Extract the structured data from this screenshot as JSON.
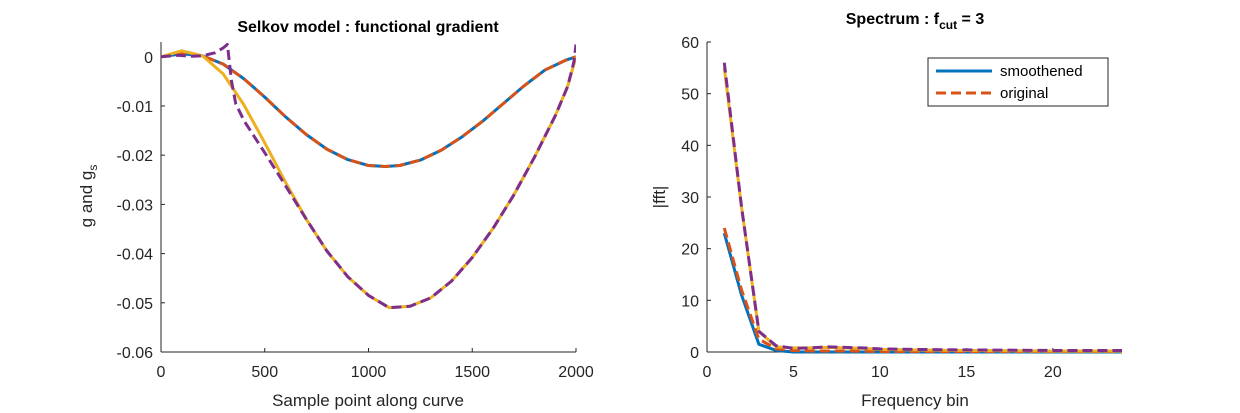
{
  "chart_data": [
    {
      "type": "line",
      "title": "Selkov model : functional gradient",
      "xlabel": "Sample point along curve",
      "ylabel": {
        "base": "g and g",
        "subscript": "s"
      },
      "xlim": [
        0,
        2000
      ],
      "ylim": [
        -0.06,
        0.003
      ],
      "xticks": [
        0,
        500,
        1000,
        1500,
        2000
      ],
      "xtick_labels": [
        "0",
        "500",
        "1000",
        "1500",
        "2000"
      ],
      "yticks": [
        0,
        -0.01,
        -0.02,
        -0.03,
        -0.04,
        -0.05,
        -0.06
      ],
      "ytick_labels": [
        "0",
        "-0.01",
        "-0.02",
        "-0.03",
        "-0.04",
        "-0.05",
        "-0.06"
      ],
      "grid": false,
      "series": [
        {
          "color": "#0072BD",
          "dash": "solid",
          "points": [
            [
              0,
              0
            ],
            [
              100,
              0.0006
            ],
            [
              200,
              0.0002
            ],
            [
              300,
              -0.0015
            ],
            [
              400,
              -0.0045
            ],
            [
              500,
              -0.0082
            ],
            [
              600,
              -0.0122
            ],
            [
              700,
              -0.0158
            ],
            [
              800,
              -0.0188
            ],
            [
              900,
              -0.0209
            ],
            [
              1000,
              -0.0221
            ],
            [
              1080,
              -0.0223
            ],
            [
              1150,
              -0.0221
            ],
            [
              1250,
              -0.021
            ],
            [
              1350,
              -0.019
            ],
            [
              1450,
              -0.0163
            ],
            [
              1550,
              -0.0131
            ],
            [
              1650,
              -0.0095
            ],
            [
              1750,
              -0.0059
            ],
            [
              1850,
              -0.0027
            ],
            [
              1950,
              -0.0007
            ],
            [
              2000,
              0
            ]
          ]
        },
        {
          "color": "#D95319",
          "dash": "dashed",
          "points": [
            [
              0,
              0
            ],
            [
              100,
              0.0006
            ],
            [
              200,
              0.0002
            ],
            [
              300,
              -0.0015
            ],
            [
              400,
              -0.0045
            ],
            [
              500,
              -0.0082
            ],
            [
              600,
              -0.0122
            ],
            [
              700,
              -0.0158
            ],
            [
              800,
              -0.0188
            ],
            [
              900,
              -0.0209
            ],
            [
              1000,
              -0.0221
            ],
            [
              1080,
              -0.0223
            ],
            [
              1150,
              -0.0221
            ],
            [
              1250,
              -0.021
            ],
            [
              1350,
              -0.019
            ],
            [
              1450,
              -0.0163
            ],
            [
              1550,
              -0.0131
            ],
            [
              1650,
              -0.0095
            ],
            [
              1750,
              -0.0059
            ],
            [
              1850,
              -0.0027
            ],
            [
              1950,
              -0.0007
            ],
            [
              2000,
              0
            ]
          ]
        },
        {
          "color": "#EDB120",
          "dash": "solid",
          "points": [
            [
              0,
              0
            ],
            [
              100,
              0.0012
            ],
            [
              200,
              0.0002
            ],
            [
              300,
              -0.0035
            ],
            [
              400,
              -0.0098
            ],
            [
              500,
              -0.0175
            ],
            [
              600,
              -0.0255
            ],
            [
              700,
              -0.033
            ],
            [
              800,
              -0.0395
            ],
            [
              900,
              -0.0447
            ],
            [
              1000,
              -0.0485
            ],
            [
              1100,
              -0.051
            ],
            [
              1200,
              -0.0507
            ],
            [
              1300,
              -0.049
            ],
            [
              1400,
              -0.0456
            ],
            [
              1500,
              -0.0408
            ],
            [
              1600,
              -0.0349
            ],
            [
              1700,
              -0.0281
            ],
            [
              1800,
              -0.0204
            ],
            [
              1900,
              -0.012
            ],
            [
              1960,
              -0.006
            ],
            [
              2000,
              0
            ]
          ]
        },
        {
          "color": "#7E2F8E",
          "dash": "dashed",
          "points": [
            [
              0,
              0
            ],
            [
              80,
              0.0003
            ],
            [
              150,
              0.0001
            ],
            [
              200,
              0.0002
            ],
            [
              260,
              0.0008
            ],
            [
              300,
              0.0018
            ],
            [
              320,
              0.0025
            ],
            [
              340,
              -0.005
            ],
            [
              360,
              -0.0095
            ],
            [
              400,
              -0.013
            ],
            [
              500,
              -0.0195
            ],
            [
              600,
              -0.0262
            ],
            [
              700,
              -0.033
            ],
            [
              800,
              -0.0395
            ],
            [
              900,
              -0.0447
            ],
            [
              1000,
              -0.0485
            ],
            [
              1100,
              -0.051
            ],
            [
              1200,
              -0.0507
            ],
            [
              1300,
              -0.049
            ],
            [
              1400,
              -0.0456
            ],
            [
              1500,
              -0.0408
            ],
            [
              1600,
              -0.0349
            ],
            [
              1700,
              -0.0281
            ],
            [
              1800,
              -0.0204
            ],
            [
              1900,
              -0.012
            ],
            [
              1960,
              -0.006
            ],
            [
              1990,
              -0.001
            ],
            [
              2000,
              0.0025
            ]
          ]
        }
      ]
    },
    {
      "type": "line",
      "title": {
        "base": "Spectrum : f",
        "subscript": "cut",
        "suffix": " = 3"
      },
      "xlabel": "Frequency bin",
      "ylabel": "|fft|",
      "xlim": [
        0,
        24
      ],
      "ylim": [
        0,
        60
      ],
      "xticks": [
        0,
        5,
        10,
        15,
        20
      ],
      "xtick_labels": [
        "0",
        "5",
        "10",
        "15",
        "20"
      ],
      "yticks": [
        0,
        10,
        20,
        30,
        40,
        50,
        60
      ],
      "ytick_labels": [
        "0",
        "10",
        "20",
        "30",
        "40",
        "50",
        "60"
      ],
      "grid": false,
      "legend": {
        "position": "top-right",
        "entries": [
          {
            "label": "smoothened",
            "color": "#0072BD",
            "dash": "solid"
          },
          {
            "label": "original",
            "color": "#D95319",
            "dash": "dashed"
          }
        ]
      },
      "series": [
        {
          "color": "#0072BD",
          "dash": "solid",
          "points": [
            [
              1,
              23
            ],
            [
              2,
              11
            ],
            [
              3,
              1.5
            ],
            [
              4,
              0.3
            ],
            [
              5,
              0
            ],
            [
              6,
              0
            ],
            [
              8,
              0
            ],
            [
              10,
              0
            ],
            [
              15,
              0
            ],
            [
              20,
              0
            ],
            [
              24,
              0
            ]
          ]
        },
        {
          "color": "#D95319",
          "dash": "dashed",
          "points": [
            [
              1,
              24
            ],
            [
              2,
              12
            ],
            [
              3,
              2.5
            ],
            [
              4,
              0.6
            ],
            [
              5,
              0.3
            ],
            [
              6,
              0.2
            ],
            [
              8,
              0.2
            ],
            [
              10,
              0.1
            ],
            [
              15,
              0.1
            ],
            [
              20,
              0.1
            ],
            [
              24,
              0.1
            ]
          ]
        },
        {
          "color": "#EDB120",
          "dash": "solid",
          "points": [
            [
              1,
              55
            ],
            [
              2,
              28
            ],
            [
              3,
              4
            ],
            [
              4,
              1
            ],
            [
              5,
              0.8
            ],
            [
              6,
              0.8
            ],
            [
              7,
              0.9
            ],
            [
              8,
              0.8
            ],
            [
              9,
              0.7
            ],
            [
              10,
              0.5
            ],
            [
              12,
              0.4
            ],
            [
              15,
              0.3
            ],
            [
              20,
              0.2
            ],
            [
              24,
              0.2
            ]
          ]
        },
        {
          "color": "#7E2F8E",
          "dash": "dashed",
          "points": [
            [
              1,
              56
            ],
            [
              2,
              28
            ],
            [
              3,
              4
            ],
            [
              4,
              1.2
            ],
            [
              5,
              0.7
            ],
            [
              6,
              0.8
            ],
            [
              7,
              1
            ],
            [
              8,
              0.9
            ],
            [
              9,
              0.8
            ],
            [
              10,
              0.6
            ],
            [
              12,
              0.5
            ],
            [
              15,
              0.4
            ],
            [
              20,
              0.3
            ],
            [
              24,
              0.3
            ]
          ]
        }
      ]
    }
  ]
}
